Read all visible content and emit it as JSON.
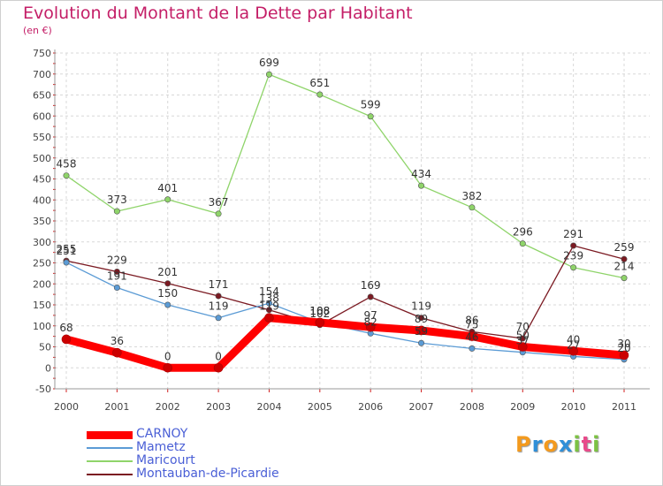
{
  "chart_data": {
    "type": "line",
    "title": "Evolution du Montant de la Dette par Habitant",
    "unit": "(en €)",
    "x": [
      "2000",
      "2001",
      "2002",
      "2003",
      "2004",
      "2005",
      "2006",
      "2007",
      "2008",
      "2009",
      "2010",
      "2011"
    ],
    "yticks": [
      -50,
      0,
      50,
      100,
      150,
      200,
      250,
      300,
      350,
      400,
      450,
      500,
      550,
      600,
      650,
      700,
      750
    ],
    "ylim": [
      -50,
      750
    ],
    "grid": true,
    "legend_position": "bottom-left",
    "series": [
      {
        "name": "CARNOY",
        "color": "#ff0000",
        "values": [
          68,
          36,
          0,
          0,
          119,
          108,
          97,
          89,
          75,
          50,
          40,
          30
        ],
        "labels": [
          "68",
          "36",
          "0",
          "0",
          "119",
          "108",
          "97",
          "89",
          "75",
          "50",
          "40",
          "30"
        ]
      },
      {
        "name": "Mametz",
        "color": "#5b9bd5",
        "values": [
          251,
          191,
          150,
          119,
          154,
          108,
          82,
          59,
          46,
          37,
          27,
          20
        ],
        "labels": [
          "251",
          "191",
          "150",
          "119",
          "154",
          "108",
          "82",
          "59",
          "46",
          "37",
          "27",
          "20"
        ]
      },
      {
        "name": "Maricourt",
        "color": "#8fd46a",
        "values": [
          458,
          373,
          401,
          367,
          699,
          651,
          599,
          434,
          382,
          296,
          239,
          214
        ],
        "labels": [
          "458",
          "373",
          "401",
          "367",
          "699",
          "651",
          "599",
          "434",
          "382",
          "296",
          "239",
          "214"
        ]
      },
      {
        "name": "Montauban-de-Picardie",
        "color": "#7b1a22",
        "values": [
          255,
          229,
          201,
          171,
          138,
          102,
          169,
          119,
          86,
          70,
          291,
          259
        ],
        "labels": [
          "255",
          "229",
          "201",
          "171",
          "138",
          "102",
          "169",
          "119",
          "86",
          "70",
          "291",
          "259"
        ]
      }
    ]
  },
  "logo": {
    "letters": [
      "P",
      "r",
      "o",
      "x",
      "i",
      "t",
      "i"
    ],
    "colors": [
      "#f39a1e",
      "#2f8fd8",
      "#f39a1e",
      "#2f8fd8",
      "#7cc242",
      "#e84a8a",
      "#7cc242"
    ]
  }
}
